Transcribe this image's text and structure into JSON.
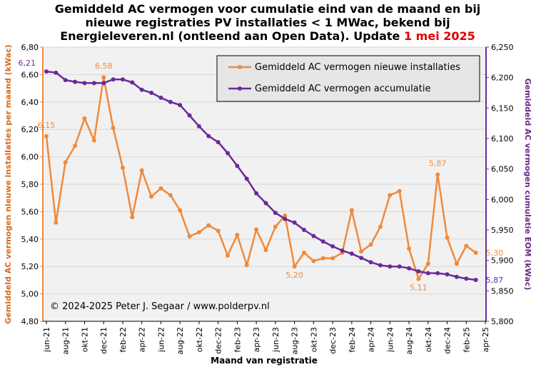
{
  "title": {
    "line1": "Gemiddeld AC vermogen voor cumulatie  eind van de maand en bij",
    "line2": "nieuwe registraties PV installaties  < 1 MWac, bekend bij",
    "line3_prefix": "Energieleveren.nl  (ontleend aan Open Data). Update ",
    "line3_highlight": "1 mei 2025"
  },
  "credit": "© 2024-2025  Peter J. Segaar / www.polderpv.nl",
  "colors": {
    "orange": "#ef8a3c",
    "purple": "#6a2a9a",
    "plot_bg": "#f1f1f1",
    "grid": "#d7d7d7"
  },
  "chart_data": {
    "type": "line",
    "xlabel": "Maand van registratie",
    "ylabel_left": "Gemiddeld AC vermogen nieuwe installaties per maand (kWac)",
    "ylabel_right": "Gemiddeld AC vermogen cumulatie EOM (kWac)",
    "ylim_left": [
      4.8,
      6.8
    ],
    "ylim_right": [
      5800,
      6250
    ],
    "yticks_left": [
      "4,80",
      "5,00",
      "5,20",
      "5,40",
      "5,60",
      "5,80",
      "6,00",
      "6,20",
      "6,40",
      "6,60",
      "6,80"
    ],
    "yticks_right": [
      "5,800",
      "5,850",
      "5,900",
      "5,950",
      "6,000",
      "6,050",
      "6,100",
      "6,150",
      "6,200",
      "6,250"
    ],
    "x_labels": [
      "jun-21",
      "aug-21",
      "okt-21",
      "dec-21",
      "feb-22",
      "apr-22",
      "jun-22",
      "aug-22",
      "okt-22",
      "dec-22",
      "feb-23",
      "apr-23",
      "jun-23",
      "aug-23",
      "okt-23",
      "dec-23",
      "feb-24",
      "apr-24",
      "jun-24",
      "aug-24",
      "okt-24",
      "dec-24",
      "feb-25",
      "apr-25"
    ],
    "legend_position": "top-right",
    "series": [
      {
        "name": "Gemiddeld AC vermogen nieuwe installaties",
        "axis": "left",
        "values": [
          6.15,
          5.52,
          5.96,
          6.08,
          6.28,
          6.12,
          6.58,
          6.21,
          5.92,
          5.56,
          5.9,
          5.71,
          5.77,
          5.72,
          5.61,
          5.42,
          5.45,
          5.5,
          5.46,
          5.28,
          5.43,
          5.21,
          5.47,
          5.32,
          5.49,
          5.57,
          5.2,
          5.3,
          5.24,
          5.26,
          5.26,
          5.3,
          5.61,
          5.31,
          5.36,
          5.49,
          5.72,
          5.75,
          5.33,
          5.11,
          5.22,
          5.87,
          5.41,
          5.22,
          5.35,
          5.3
        ]
      },
      {
        "name": "Gemiddeld AC vermogen accumulatie",
        "axis": "right",
        "values": [
          6210,
          6208,
          6196,
          6193,
          6191,
          6191,
          6191,
          6197,
          6197,
          6192,
          6180,
          6175,
          6167,
          6160,
          6155,
          6138,
          6120,
          6104,
          6094,
          6076,
          6055,
          6034,
          6010,
          5994,
          5978,
          5968,
          5962,
          5950,
          5940,
          5931,
          5923,
          5916,
          5911,
          5904,
          5897,
          5892,
          5890,
          5890,
          5887,
          5882,
          5879,
          5879,
          5877,
          5873,
          5870,
          5868
        ]
      }
    ],
    "annotations_left": [
      {
        "index": 0,
        "text": "6,15"
      },
      {
        "index": 6,
        "text": "6,58"
      },
      {
        "index": 26,
        "text": "5,20"
      },
      {
        "index": 39,
        "text": "5,11"
      },
      {
        "index": 41,
        "text": "5,87"
      },
      {
        "index": 45,
        "text": "5,30"
      }
    ],
    "annotations_right": [
      {
        "index": 0,
        "text": "6,21"
      },
      {
        "index": 45,
        "text": "5,87"
      }
    ]
  }
}
